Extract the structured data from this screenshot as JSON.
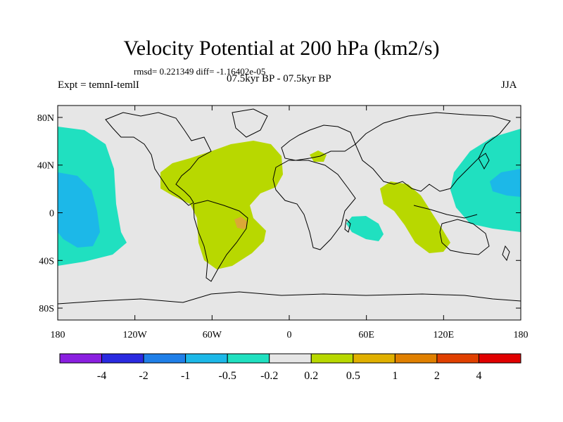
{
  "title": "Velocity Potential at 200 hPa (km2/s)",
  "stats": "rmsd= 0.221349 diff= -1.16402e-05",
  "experiment": "Expt = temnI-temlI",
  "period": "07.5kyr BP - 07.5kyr BP",
  "season": "JJA",
  "axes": {
    "lat_labels": [
      "80N",
      "40N",
      "0",
      "40S",
      "80S"
    ],
    "lat_values": [
      80,
      40,
      0,
      -40,
      -80
    ],
    "lon_labels": [
      "180",
      "120W",
      "60W",
      "0",
      "60E",
      "120E",
      "180"
    ],
    "lon_values": [
      -180,
      -120,
      -60,
      0,
      60,
      120,
      180
    ]
  },
  "colorbar": {
    "labels": [
      "-4",
      "-2",
      "-1",
      "-0.5",
      "-0.2",
      "0.2",
      "0.5",
      "1",
      "2",
      "4"
    ],
    "colors": [
      "#8a1fe0",
      "#2a2ae0",
      "#1f7fe8",
      "#1cb8e8",
      "#20e0c0",
      "#e6e6e6",
      "#b8d800",
      "#e0b000",
      "#e08000",
      "#e04000",
      "#e00000"
    ]
  },
  "colors": {
    "background": "#e6e6e6",
    "neg_weak": "#20e0c0",
    "neg_mid": "#1cb8e8",
    "pos_weak": "#b8d800",
    "pos_mid": "#e0a040"
  }
}
